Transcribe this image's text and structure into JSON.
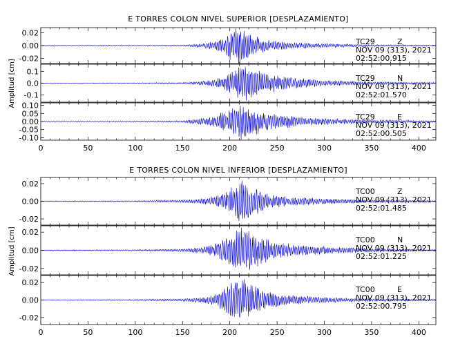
{
  "colors": {
    "trace": "#0000cc",
    "axis": "#000000",
    "background": "#ffffff"
  },
  "chart_data": [
    {
      "type": "line",
      "title": "E TORRES COLON NIVEL SUPERIOR [DESPLAZAMIENTO]",
      "ylabel": "Amplitud [cm]",
      "xlim": [
        0,
        418
      ],
      "x_ticks": [
        "0",
        "50",
        "100",
        "150",
        "200",
        "250",
        "300",
        "350",
        "400"
      ],
      "grid": false,
      "panels": [
        {
          "station": "TC29",
          "component": "Z",
          "date": "NOV 09 (313), 2021",
          "time": "02:52:00.915",
          "ylim": [
            -0.028,
            0.028
          ],
          "y_ticks": [
            0.02,
            0.0,
            -0.02
          ],
          "y_tick_labels": [
            "0.02",
            "0.00",
            "-0.02"
          ],
          "peak_amplitude": 0.028,
          "envelope": [
            [
              0,
              0.0006
            ],
            [
              100,
              0.0007
            ],
            [
              150,
              0.001
            ],
            [
              170,
              0.003
            ],
            [
              185,
              0.007
            ],
            [
              195,
              0.014
            ],
            [
              203,
              0.024
            ],
            [
              210,
              0.028
            ],
            [
              216,
              0.026
            ],
            [
              225,
              0.015
            ],
            [
              240,
              0.008
            ],
            [
              260,
              0.005
            ],
            [
              300,
              0.003
            ],
            [
              350,
              0.0015
            ],
            [
              418,
              0.0008
            ]
          ]
        },
        {
          "station": "TC29",
          "component": "N",
          "date": "NOV 09 (313), 2021",
          "time": "02:52:01.570",
          "ylim": [
            -0.16,
            0.16
          ],
          "y_ticks": [
            0.1,
            0.0,
            -0.1
          ],
          "y_tick_labels": [
            "0.1",
            "0.0",
            "-0.1"
          ],
          "peak_amplitude": 0.16,
          "envelope": [
            [
              0,
              0.003
            ],
            [
              100,
              0.004
            ],
            [
              150,
              0.006
            ],
            [
              170,
              0.015
            ],
            [
              185,
              0.035
            ],
            [
              198,
              0.07
            ],
            [
              208,
              0.12
            ],
            [
              215,
              0.16
            ],
            [
              225,
              0.12
            ],
            [
              240,
              0.08
            ],
            [
              260,
              0.05
            ],
            [
              300,
              0.025
            ],
            [
              350,
              0.012
            ],
            [
              418,
              0.006
            ]
          ]
        },
        {
          "station": "TC29",
          "component": "E",
          "date": "NOV 09 (313), 2021",
          "time": "02:52:00.505",
          "ylim": [
            -0.115,
            0.115
          ],
          "y_ticks": [
            0.1,
            0.05,
            0.0,
            -0.05,
            -0.1
          ],
          "y_tick_labels": [
            "0.10",
            "0.05",
            "0.00",
            "-0.05",
            "-0.10"
          ],
          "peak_amplitude": 0.115,
          "envelope": [
            [
              0,
              0.002
            ],
            [
              100,
              0.003
            ],
            [
              150,
              0.005
            ],
            [
              170,
              0.02
            ],
            [
              185,
              0.04
            ],
            [
              198,
              0.07
            ],
            [
              210,
              0.1
            ],
            [
              215,
              0.115
            ],
            [
              225,
              0.08
            ],
            [
              245,
              0.05
            ],
            [
              270,
              0.03
            ],
            [
              300,
              0.02
            ],
            [
              350,
              0.01
            ],
            [
              418,
              0.005
            ]
          ]
        }
      ]
    },
    {
      "type": "line",
      "title": "E TORRES COLON NIVEL INFERIOR [DESPLAZAMIENTO]",
      "ylabel": "Amplitud [cm]",
      "xlim": [
        0,
        418
      ],
      "x_ticks": [
        "0",
        "50",
        "100",
        "150",
        "200",
        "250",
        "300",
        "350",
        "400"
      ],
      "grid": false,
      "panels": [
        {
          "station": "TC00",
          "component": "Z",
          "date": "NOV 09 (313), 2021",
          "time": "02:52:01.485",
          "ylim": [
            -0.027,
            0.027
          ],
          "y_ticks": [
            0.02,
            0.0,
            -0.02
          ],
          "y_tick_labels": [
            "0.02",
            "0.00",
            "-0.02"
          ],
          "peak_amplitude": 0.027,
          "envelope": [
            [
              0,
              0.0005
            ],
            [
              100,
              0.0007
            ],
            [
              150,
              0.0015
            ],
            [
              170,
              0.003
            ],
            [
              185,
              0.006
            ],
            [
              198,
              0.012
            ],
            [
              208,
              0.022
            ],
            [
              213,
              0.026
            ],
            [
              220,
              0.018
            ],
            [
              240,
              0.009
            ],
            [
              260,
              0.005
            ],
            [
              300,
              0.003
            ],
            [
              350,
              0.0015
            ],
            [
              418,
              0.0008
            ]
          ]
        },
        {
          "station": "TC00",
          "component": "N",
          "date": "NOV 09 (313), 2021",
          "time": "02:52:01.225",
          "ylim": [
            -0.027,
            0.027
          ],
          "y_ticks": [
            0.02,
            0.0,
            -0.02
          ],
          "y_tick_labels": [
            "0.02",
            "0.00",
            "-0.02"
          ],
          "peak_amplitude": 0.027,
          "envelope": [
            [
              0,
              0.0005
            ],
            [
              100,
              0.0007
            ],
            [
              150,
              0.0015
            ],
            [
              170,
              0.003
            ],
            [
              185,
              0.007
            ],
            [
              198,
              0.014
            ],
            [
              208,
              0.022
            ],
            [
              214,
              0.027
            ],
            [
              222,
              0.02
            ],
            [
              240,
              0.012
            ],
            [
              260,
              0.007
            ],
            [
              300,
              0.004
            ],
            [
              350,
              0.002
            ],
            [
              418,
              0.001
            ]
          ]
        },
        {
          "station": "TC00",
          "component": "E",
          "date": "NOV 09 (313), 2021",
          "time": "02:52:00.795",
          "ylim": [
            -0.028,
            0.028
          ],
          "y_ticks": [
            0.02,
            0.0,
            -0.02
          ],
          "y_tick_labels": [
            "0.02",
            "0.00",
            "-0.02"
          ],
          "peak_amplitude": 0.028,
          "envelope": [
            [
              0,
              0.0005
            ],
            [
              100,
              0.0007
            ],
            [
              150,
              0.0015
            ],
            [
              170,
              0.003
            ],
            [
              185,
              0.007
            ],
            [
              196,
              0.014
            ],
            [
              206,
              0.022
            ],
            [
              212,
              0.027
            ],
            [
              222,
              0.018
            ],
            [
              240,
              0.01
            ],
            [
              260,
              0.006
            ],
            [
              300,
              0.003
            ],
            [
              350,
              0.0015
            ],
            [
              418,
              0.0008
            ]
          ]
        }
      ]
    }
  ]
}
